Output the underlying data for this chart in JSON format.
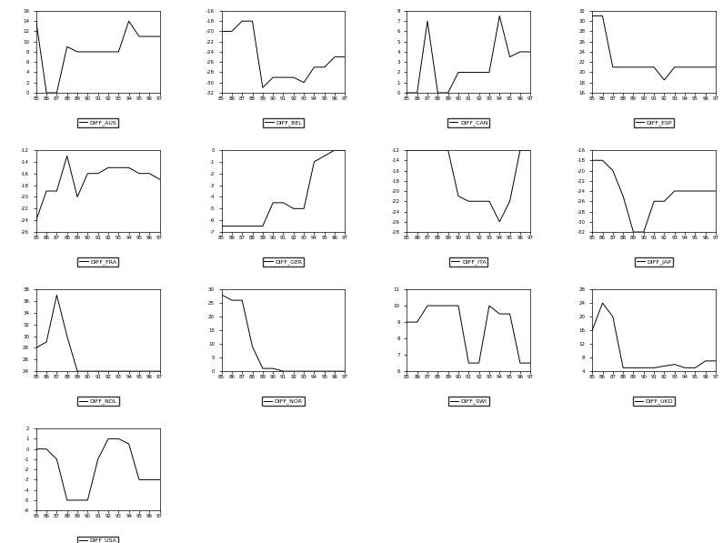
{
  "years": [
    85,
    86,
    87,
    88,
    89,
    90,
    91,
    92,
    93,
    94,
    95,
    96,
    97
  ],
  "series": {
    "DIFF_AUS": [
      14,
      0,
      0,
      9,
      8,
      8,
      8,
      8,
      8,
      14,
      11,
      11,
      11
    ],
    "DIFF_BEL": [
      -20,
      -20,
      -18,
      -18,
      -31,
      -29,
      -29,
      -29,
      -30,
      -27,
      -27,
      -25,
      -25
    ],
    "DIFF_CAN": [
      0,
      0,
      7,
      0,
      0,
      2,
      2,
      2,
      2,
      7.5,
      3.5,
      4,
      4
    ],
    "DIFF_ESP": [
      31,
      31,
      21,
      21,
      21,
      21,
      21,
      18.5,
      21,
      21,
      21,
      21,
      21
    ],
    "DIFF_FRA": [
      -24,
      -19,
      -19,
      -13,
      -20,
      -16,
      -16,
      -15,
      -15,
      -15,
      -16,
      -16,
      -17
    ],
    "DIFF_GER": [
      -6.5,
      -6.5,
      -6.5,
      -6.5,
      -6.5,
      -4.5,
      -4.5,
      -5,
      -5,
      -1,
      -0.5,
      0,
      0
    ],
    "DIFF_ITA": [
      -12,
      -12,
      -12,
      -12,
      -12,
      -21,
      -22,
      -22,
      -22,
      -26,
      -22,
      -12,
      -12
    ],
    "DIFF_JAP": [
      -18,
      -18,
      -20,
      -25,
      -32,
      -32,
      -26,
      -26,
      -24,
      -24,
      -24,
      -24,
      -24
    ],
    "DIFF_NDL": [
      28,
      29,
      37,
      30,
      24,
      24,
      24,
      24,
      24,
      24,
      24,
      24,
      24
    ],
    "DIFF_NOR": [
      28,
      26,
      26,
      9,
      1,
      1,
      0,
      0,
      0,
      0,
      0,
      0,
      0
    ],
    "DIFF_SWI": [
      9,
      9,
      10,
      10,
      10,
      10,
      6.5,
      6.5,
      10,
      9.5,
      9.5,
      6.5,
      6.5
    ],
    "DIFF_UKD": [
      16,
      24,
      20,
      5,
      5,
      5,
      5,
      5.5,
      6,
      5,
      5,
      7,
      7
    ],
    "DIFF_USA": [
      0,
      0,
      -1,
      -5,
      -5,
      -5,
      -1,
      1,
      1,
      0.5,
      -3,
      -3,
      -3
    ]
  },
  "ylims": {
    "DIFF_AUS": [
      0,
      16
    ],
    "DIFF_BEL": [
      -32,
      -16
    ],
    "DIFF_CAN": [
      0,
      8
    ],
    "DIFF_ESP": [
      16,
      32
    ],
    "DIFF_FRA": [
      -26,
      -12
    ],
    "DIFF_GER": [
      -7,
      0
    ],
    "DIFF_ITA": [
      -28,
      -12
    ],
    "DIFF_JAP": [
      -32,
      -16
    ],
    "DIFF_NDL": [
      24,
      38
    ],
    "DIFF_NOR": [
      0,
      30
    ],
    "DIFF_SWI": [
      6,
      11
    ],
    "DIFF_UKD": [
      4,
      28
    ],
    "DIFF_USA": [
      -6,
      2
    ]
  },
  "yticks": {
    "DIFF_AUS": [
      0,
      2,
      4,
      6,
      8,
      10,
      12,
      14,
      16
    ],
    "DIFF_BEL": [
      -32,
      -30,
      -28,
      -26,
      -24,
      -22,
      -20,
      -18,
      -16
    ],
    "DIFF_CAN": [
      0,
      1,
      2,
      3,
      4,
      5,
      6,
      7,
      8
    ],
    "DIFF_ESP": [
      16,
      18,
      20,
      22,
      24,
      26,
      28,
      30,
      32
    ],
    "DIFF_FRA": [
      -26,
      -24,
      -22,
      -20,
      -18,
      -16,
      -14,
      -12
    ],
    "DIFF_GER": [
      -7,
      -6,
      -5,
      -4,
      -3,
      -2,
      -1,
      0
    ],
    "DIFF_ITA": [
      -28,
      -26,
      -24,
      -22,
      -20,
      -18,
      -16,
      -14,
      -12
    ],
    "DIFF_JAP": [
      -32,
      -30,
      -28,
      -26,
      -24,
      -22,
      -20,
      -18,
      -16
    ],
    "DIFF_NDL": [
      24,
      26,
      28,
      30,
      32,
      34,
      36,
      38
    ],
    "DIFF_NOR": [
      0,
      5,
      10,
      15,
      20,
      25,
      30
    ],
    "DIFF_SWI": [
      6,
      7,
      8,
      9,
      10,
      11
    ],
    "DIFF_UKD": [
      4,
      8,
      12,
      16,
      20,
      24,
      28
    ],
    "DIFF_USA": [
      -6,
      -5,
      -4,
      -3,
      -2,
      -1,
      0,
      1,
      2
    ]
  }
}
